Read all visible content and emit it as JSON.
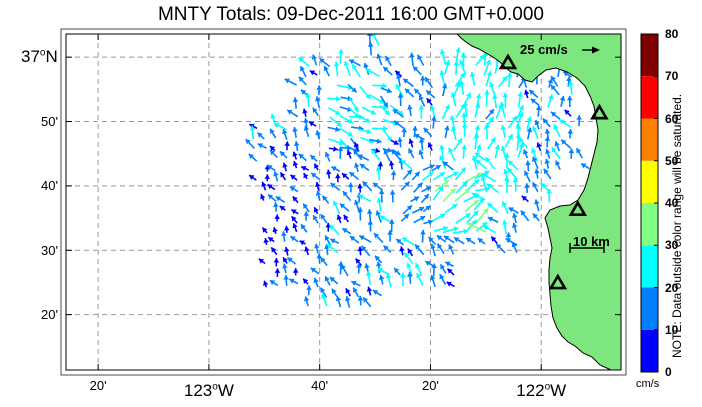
{
  "title": "MNTY Totals: 09-Dec-2011 16:00 GMT+0.000",
  "map": {
    "lat_labels": [
      {
        "lat": 37.0,
        "text": "37",
        "deg": "o",
        "hemi": "N",
        "major": true
      },
      {
        "lat": 36.8333,
        "text": "50'",
        "major": false
      },
      {
        "lat": 36.6667,
        "text": "40'",
        "major": false
      },
      {
        "lat": 36.5,
        "text": "30'",
        "major": false
      },
      {
        "lat": 36.3333,
        "text": "20'",
        "major": false
      }
    ],
    "lon_labels": [
      {
        "lon": -123.3333,
        "text": "20'",
        "major": false
      },
      {
        "lon": -123.0,
        "text": "123",
        "deg": "o",
        "hemi": "W",
        "major": true
      },
      {
        "lon": -122.6667,
        "text": "40'",
        "major": false
      },
      {
        "lon": -122.3333,
        "text": "20'",
        "major": false
      },
      {
        "lon": -122.0,
        "text": "122",
        "deg": "o",
        "hemi": "W",
        "major": true
      }
    ],
    "extent": {
      "lon_min": -123.43,
      "lon_max": -121.76,
      "lat_min": 36.19,
      "lat_max": 37.06
    },
    "land_color": "#7ee67e",
    "stations": [
      {
        "lon": -122.1,
        "lat": 36.985
      },
      {
        "lon": -121.825,
        "lat": 36.855
      },
      {
        "lon": -121.89,
        "lat": 36.605
      },
      {
        "lon": -121.95,
        "lat": 36.415
      }
    ],
    "reference_vector": {
      "label": "25 cm/s",
      "speed_cm_s": 25
    },
    "scale_bar": {
      "label": "10 km",
      "km": 10
    }
  },
  "colorbar": {
    "ticks": [
      "0",
      "10",
      "20",
      "30",
      "40",
      "50",
      "60",
      "70",
      "80"
    ],
    "colors": [
      "#0000ff",
      "#0080ff",
      "#00ffff",
      "#80ff80",
      "#ffff00",
      "#ff8000",
      "#ff0000",
      "#800000"
    ],
    "units": "cm/s",
    "note": "NOTE: Data outside color range will be saturated."
  }
}
